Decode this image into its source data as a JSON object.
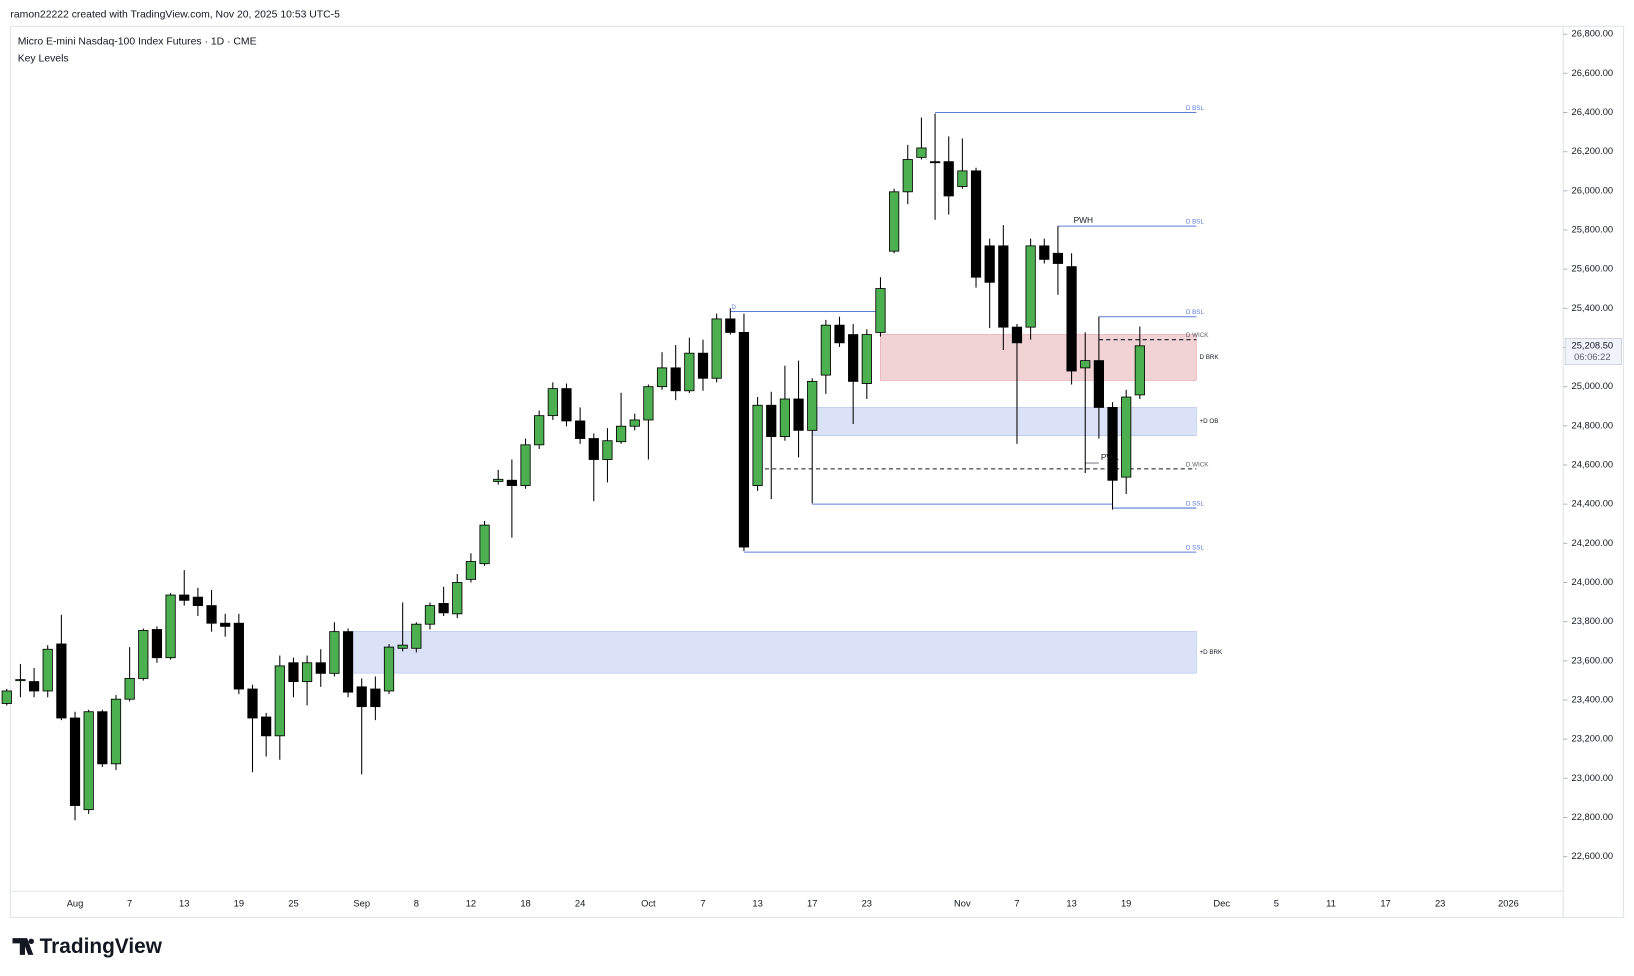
{
  "header": {
    "credit": "ramon22222 created with TradingView.com, Nov 20, 2025 10:53 UTC-5",
    "brand": "TradingView"
  },
  "chart_data": {
    "type": "candlestick",
    "title": "Micro E-mini Nasdaq-100 Index Futures · 1D · CME",
    "subtitle": "Key Levels",
    "up_color": "#4caf50",
    "down_color": "#000000",
    "ylim": [
      22290,
      26840
    ],
    "yticks": [
      {
        "value": 22600,
        "label": "22,600.00"
      },
      {
        "value": 22800,
        "label": "22,800.00"
      },
      {
        "value": 23000,
        "label": "23,000.00"
      },
      {
        "value": 23200,
        "label": "23,200.00"
      },
      {
        "value": 23400,
        "label": "23,400.00"
      },
      {
        "value": 23600,
        "label": "23,600.00"
      },
      {
        "value": 23800,
        "label": "23,800.00"
      },
      {
        "value": 24000,
        "label": "24,000.00"
      },
      {
        "value": 24200,
        "label": "24,200.00"
      },
      {
        "value": 24400,
        "label": "24,400.00"
      },
      {
        "value": 24600,
        "label": "24,600.00"
      },
      {
        "value": 24800,
        "label": "24,800.00"
      },
      {
        "value": 25000,
        "label": "25,000.00"
      },
      {
        "value": 25200,
        "label": "25,200.00"
      },
      {
        "value": 25400,
        "label": "25,400.00"
      },
      {
        "value": 25600,
        "label": "25,600.00"
      },
      {
        "value": 25800,
        "label": "25,800.00"
      },
      {
        "value": 26000,
        "label": "26,000.00"
      },
      {
        "value": 26200,
        "label": "26,200.00"
      },
      {
        "value": 26400,
        "label": "26,400.00"
      },
      {
        "value": 26600,
        "label": "26,600.00"
      },
      {
        "value": 26800,
        "label": "26,800.00"
      }
    ],
    "categories": [
      null,
      null,
      null,
      null,
      null,
      "Aug",
      null,
      null,
      null,
      "7",
      null,
      null,
      null,
      "13",
      null,
      null,
      null,
      "19",
      null,
      null,
      null,
      "25",
      null,
      null,
      null,
      null,
      "Sep",
      null,
      null,
      null,
      "8",
      null,
      null,
      null,
      "12",
      null,
      null,
      null,
      "18",
      null,
      null,
      null,
      "24",
      null,
      null,
      null,
      null,
      "Oct",
      null,
      null,
      null,
      "7",
      null,
      null,
      null,
      "13",
      null,
      null,
      null,
      "17",
      null,
      null,
      null,
      "23",
      null,
      null,
      null,
      null,
      null,
      null,
      "Nov",
      null,
      null,
      null,
      "7",
      null,
      null,
      null,
      "13",
      null,
      null,
      null,
      "19",
      null,
      null,
      null,
      null,
      null,
      null,
      "Dec",
      null,
      null,
      null,
      "5",
      null,
      null,
      null,
      "11",
      null,
      null,
      null,
      "17",
      null,
      null,
      null,
      "23",
      null,
      null,
      null,
      null,
      "2026",
      null,
      null,
      null
    ],
    "ohlc": [
      [
        23382,
        23456,
        23372,
        23446
      ],
      [
        23499,
        23584,
        23414,
        23504
      ],
      [
        23494,
        23563,
        23414,
        23446
      ],
      [
        23446,
        23680,
        23414,
        23659
      ],
      [
        23686,
        23835,
        23297,
        23308
      ],
      [
        23308,
        23340,
        22786,
        22861
      ],
      [
        22840,
        23350,
        22818,
        23340
      ],
      [
        23340,
        23350,
        23058,
        23074
      ],
      [
        23074,
        23425,
        23042,
        23404
      ],
      [
        23404,
        23670,
        23393,
        23510
      ],
      [
        23510,
        23765,
        23499,
        23755
      ],
      [
        23760,
        23776,
        23590,
        23616
      ],
      [
        23616,
        23946,
        23606,
        23936
      ],
      [
        23936,
        24063,
        23882,
        23909
      ],
      [
        23925,
        23973,
        23829,
        23882
      ],
      [
        23882,
        23962,
        23749,
        23792
      ],
      [
        23792,
        23840,
        23723,
        23776
      ],
      [
        23792,
        23840,
        23430,
        23456
      ],
      [
        23456,
        23478,
        23031,
        23308
      ],
      [
        23313,
        23334,
        23111,
        23217
      ],
      [
        23217,
        23627,
        23095,
        23574
      ],
      [
        23590,
        23616,
        23414,
        23494
      ],
      [
        23494,
        23627,
        23372,
        23590
      ],
      [
        23590,
        23659,
        23467,
        23536
      ],
      [
        23536,
        23797,
        23520,
        23749
      ],
      [
        23749,
        23765,
        23414,
        23440
      ],
      [
        23467,
        23510,
        23020,
        23366
      ],
      [
        23456,
        23520,
        23297,
        23366
      ],
      [
        23446,
        23686,
        23430,
        23670
      ],
      [
        23664,
        23898,
        23648,
        23680
      ],
      [
        23664,
        23797,
        23643,
        23787
      ],
      [
        23787,
        23898,
        23760,
        23882
      ],
      [
        23893,
        23978,
        23829,
        23845
      ],
      [
        23840,
        24043,
        23818,
        24000
      ],
      [
        24016,
        24149,
        24000,
        24107
      ],
      [
        24096,
        24314,
        24085,
        24293
      ],
      [
        24516,
        24575,
        24500,
        24527
      ],
      [
        24522,
        24628,
        24229,
        24495
      ],
      [
        24495,
        24735,
        24479,
        24703
      ],
      [
        24703,
        24878,
        24682,
        24852
      ],
      [
        24852,
        25022,
        24830,
        24990
      ],
      [
        24990,
        25016,
        24798,
        24825
      ],
      [
        24825,
        24894,
        24708,
        24735
      ],
      [
        24735,
        24761,
        24415,
        24628
      ],
      [
        24628,
        24788,
        24511,
        24724
      ],
      [
        24719,
        24969,
        24708,
        24798
      ],
      [
        24798,
        24862,
        24777,
        24830
      ],
      [
        24830,
        25011,
        24628,
        25000
      ],
      [
        25000,
        25176,
        24984,
        25096
      ],
      [
        25096,
        25213,
        24931,
        24979
      ],
      [
        24979,
        25250,
        24968,
        25171
      ],
      [
        25171,
        25240,
        24979,
        25043
      ],
      [
        25043,
        25373,
        25022,
        25346
      ],
      [
        25346,
        25400,
        25266,
        25277
      ],
      [
        25277,
        25373,
        24160,
        24181
      ],
      [
        24495,
        24947,
        24468,
        24905
      ],
      [
        24905,
        24974,
        24426,
        24745
      ],
      [
        24745,
        25107,
        24724,
        24937
      ],
      [
        24937,
        25133,
        24639,
        24777
      ],
      [
        24777,
        25043,
        24404,
        25027
      ],
      [
        25059,
        25341,
        24963,
        25314
      ],
      [
        25314,
        25357,
        25203,
        25224
      ],
      [
        25266,
        25320,
        24809,
        25027
      ],
      [
        25016,
        25293,
        24937,
        25266
      ],
      [
        25277,
        25559,
        25256,
        25501
      ],
      [
        25692,
        26011,
        25681,
        25995
      ],
      [
        25995,
        26235,
        25932,
        26160
      ],
      [
        26171,
        26374,
        26160,
        26219
      ],
      [
        26149,
        26395,
        25852,
        26144
      ],
      [
        26149,
        26278,
        25879,
        25974
      ],
      [
        26022,
        26267,
        26011,
        26102
      ],
      [
        26102,
        26118,
        25506,
        25559
      ],
      [
        25719,
        25756,
        25299,
        25533
      ],
      [
        25719,
        25825,
        25187,
        25304
      ],
      [
        25304,
        25320,
        24708,
        25224
      ],
      [
        25304,
        25756,
        25240,
        25719
      ],
      [
        25719,
        25756,
        25629,
        25650
      ],
      [
        25681,
        25820,
        25469,
        25629
      ],
      [
        25613,
        25681,
        25011,
        25080
      ],
      [
        25096,
        25277,
        24559,
        25133
      ],
      [
        25133,
        25357,
        24735,
        24894
      ],
      [
        24894,
        24921,
        24372,
        24522
      ],
      [
        24538,
        24984,
        24452,
        24947
      ],
      [
        24958,
        25307,
        24937,
        25208.5
      ],
      null,
      null,
      null,
      null,
      null,
      null,
      null,
      null,
      null,
      null,
      null,
      null,
      null,
      null,
      null,
      null,
      null,
      null,
      null,
      null,
      null,
      null,
      null,
      null,
      null,
      null,
      null,
      null,
      null,
      null
    ],
    "zones": [
      {
        "label": "D BRK",
        "top": 25266,
        "bottom": 25032,
        "color": "#f2d3d5"
      },
      {
        "label": "+D OB",
        "top": 24894,
        "bottom": 24750,
        "color": "#dbe2f8"
      },
      {
        "label": "+D BRK",
        "top": 23750,
        "bottom": 23537,
        "color": "#dbe2f8"
      }
    ],
    "levels": [
      {
        "label": "D BSL",
        "value": 26400,
        "color": "#5b7bd6"
      },
      {
        "label": "D BSL",
        "value": 25820,
        "tag": "PWH",
        "color": "#5b7bd6"
      },
      {
        "label": "D",
        "value": 25384,
        "color": "#5b7bd6"
      },
      {
        "label": "D BSL",
        "value": 25357,
        "color": "#5b7bd6"
      },
      {
        "label": "D WICK",
        "value": 25240,
        "dashed": true,
        "color": "#131722"
      },
      {
        "tag": "PWL",
        "value": 24610,
        "color": "#787b86"
      },
      {
        "label": "D WICK",
        "value": 24580,
        "dashed": true,
        "color": "#131722"
      },
      {
        "value": 24400,
        "color": "#5b7bd6"
      },
      {
        "label": "D SSL",
        "value": 24380,
        "color": "#5b7bd6"
      },
      {
        "label": "D SSL",
        "value": 24155,
        "color": "#5b7bd6"
      }
    ],
    "last_price": {
      "value": 25208.5,
      "label": "25,208.50"
    },
    "countdown": "06:06:22"
  }
}
